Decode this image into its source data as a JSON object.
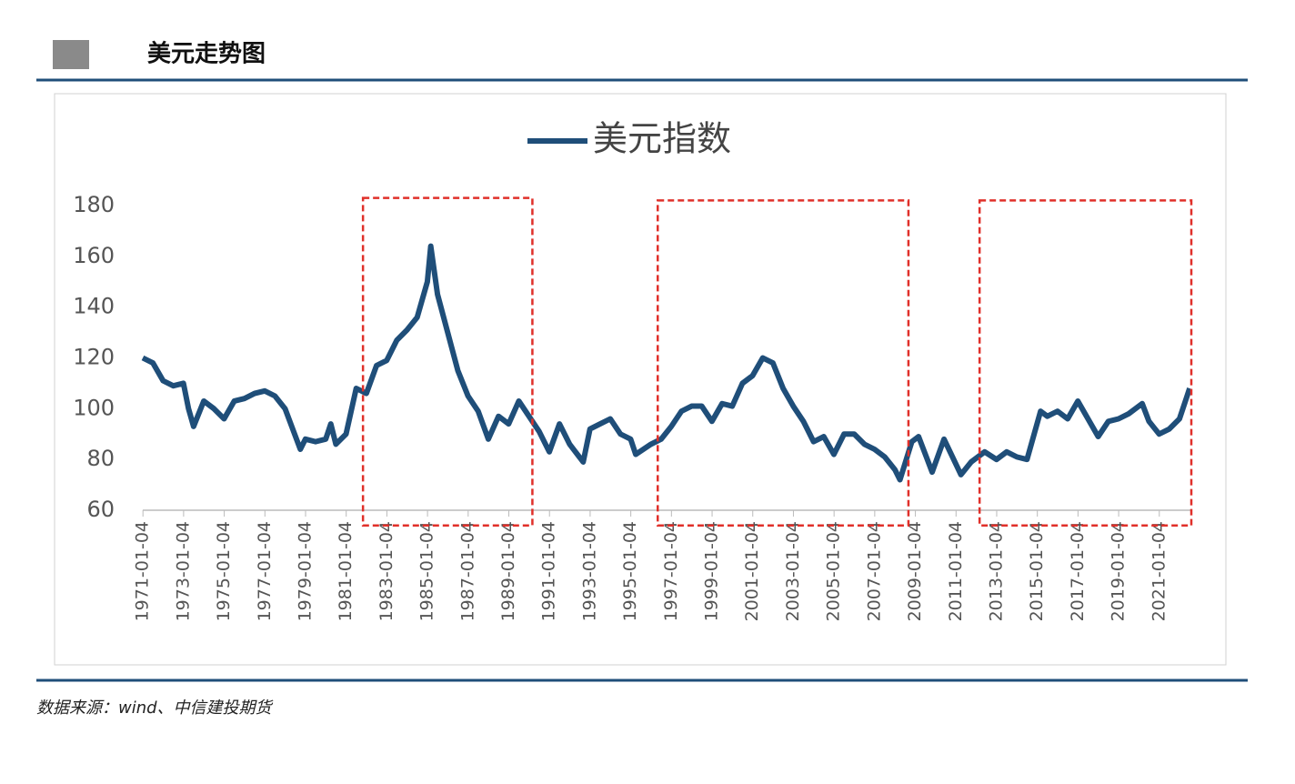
{
  "header": {
    "title": "美元走势图"
  },
  "source": "数据来源：wind、中信建投期货",
  "chart_data": {
    "type": "line",
    "series": [
      {
        "name": "美元指数",
        "color": "#1f4e79",
        "x": [
          "1971-01",
          "1971-07",
          "1972-01",
          "1972-07",
          "1973-01",
          "1973-04",
          "1973-07",
          "1974-01",
          "1974-07",
          "1975-01",
          "1975-07",
          "1976-01",
          "1976-07",
          "1977-01",
          "1977-07",
          "1978-01",
          "1978-10",
          "1979-01",
          "1979-07",
          "1980-01",
          "1980-04",
          "1980-07",
          "1981-01",
          "1981-07",
          "1982-01",
          "1982-07",
          "1983-01",
          "1983-07",
          "1984-01",
          "1984-07",
          "1985-01",
          "1985-03",
          "1985-07",
          "1986-01",
          "1986-07",
          "1987-01",
          "1987-07",
          "1988-01",
          "1988-07",
          "1989-01",
          "1989-07",
          "1990-01",
          "1990-07",
          "1991-01",
          "1991-07",
          "1992-01",
          "1992-09",
          "1993-01",
          "1993-07",
          "1994-01",
          "1994-07",
          "1995-01",
          "1995-04",
          "1996-01",
          "1996-07",
          "1997-01",
          "1997-07",
          "1998-01",
          "1998-07",
          "1999-01",
          "1999-07",
          "2000-01",
          "2000-07",
          "2001-01",
          "2001-07",
          "2002-01",
          "2002-07",
          "2003-01",
          "2003-07",
          "2004-01",
          "2004-07",
          "2005-01",
          "2005-07",
          "2006-01",
          "2006-07",
          "2007-01",
          "2007-07",
          "2008-01",
          "2008-04",
          "2008-11",
          "2009-03",
          "2009-11",
          "2010-06",
          "2011-04",
          "2011-10",
          "2012-06",
          "2013-01",
          "2013-07",
          "2014-01",
          "2014-07",
          "2015-03",
          "2015-07",
          "2016-01",
          "2016-07",
          "2017-01",
          "2017-07",
          "2018-01",
          "2018-07",
          "2019-01",
          "2019-07",
          "2020-03",
          "2020-07",
          "2021-01",
          "2021-07",
          "2022-01",
          "2022-05",
          "2022-07"
        ],
        "values": [
          120,
          118,
          111,
          109,
          110,
          100,
          93,
          103,
          100,
          96,
          103,
          104,
          106,
          107,
          105,
          100,
          84,
          88,
          87,
          88,
          94,
          86,
          90,
          108,
          106,
          117,
          119,
          127,
          131,
          136,
          150,
          164,
          145,
          130,
          115,
          105,
          99,
          88,
          97,
          94,
          103,
          97,
          91,
          83,
          94,
          86,
          79,
          92,
          94,
          96,
          90,
          88,
          82,
          86,
          88,
          93,
          99,
          101,
          101,
          95,
          102,
          101,
          110,
          113,
          120,
          118,
          108,
          101,
          95,
          87,
          89,
          82,
          90,
          90,
          86,
          84,
          81,
          76,
          72,
          87,
          89,
          75,
          88,
          74,
          79,
          83,
          80,
          83,
          81,
          80,
          99,
          97,
          99,
          96,
          103,
          96,
          89,
          95,
          96,
          98,
          102,
          95,
          90,
          92,
          96,
          104,
          108
        ]
      }
    ],
    "xlim": [
      "1971-01",
      "2022-08"
    ],
    "xticks": [
      "1971-01-04",
      "1973-01-04",
      "1975-01-04",
      "1977-01-04",
      "1979-01-04",
      "1981-01-04",
      "1983-01-04",
      "1985-01-04",
      "1987-01-04",
      "1989-01-04",
      "1991-01-04",
      "1993-01-04",
      "1995-01-04",
      "1997-01-04",
      "1999-01-04",
      "2001-01-04",
      "2003-01-04",
      "2005-01-04",
      "2007-01-04",
      "2009-01-04",
      "2011-01-04",
      "2013-01-04",
      "2015-01-04",
      "2017-01-04",
      "2019-01-04",
      "2021-01-04"
    ],
    "ylim": [
      60,
      180
    ],
    "yticks": [
      60,
      80,
      100,
      120,
      140,
      160,
      180
    ],
    "highlights": [
      {
        "x": [
          "1981-11",
          "1990-03"
        ],
        "y": [
          54,
          183
        ],
        "color": "#e0302a"
      },
      {
        "x": [
          "1996-05",
          "2008-09"
        ],
        "y": [
          54,
          182
        ],
        "color": "#e0302a"
      },
      {
        "x": [
          "2012-03",
          "2022-08"
        ],
        "y": [
          54,
          182
        ],
        "color": "#e0302a"
      }
    ]
  }
}
